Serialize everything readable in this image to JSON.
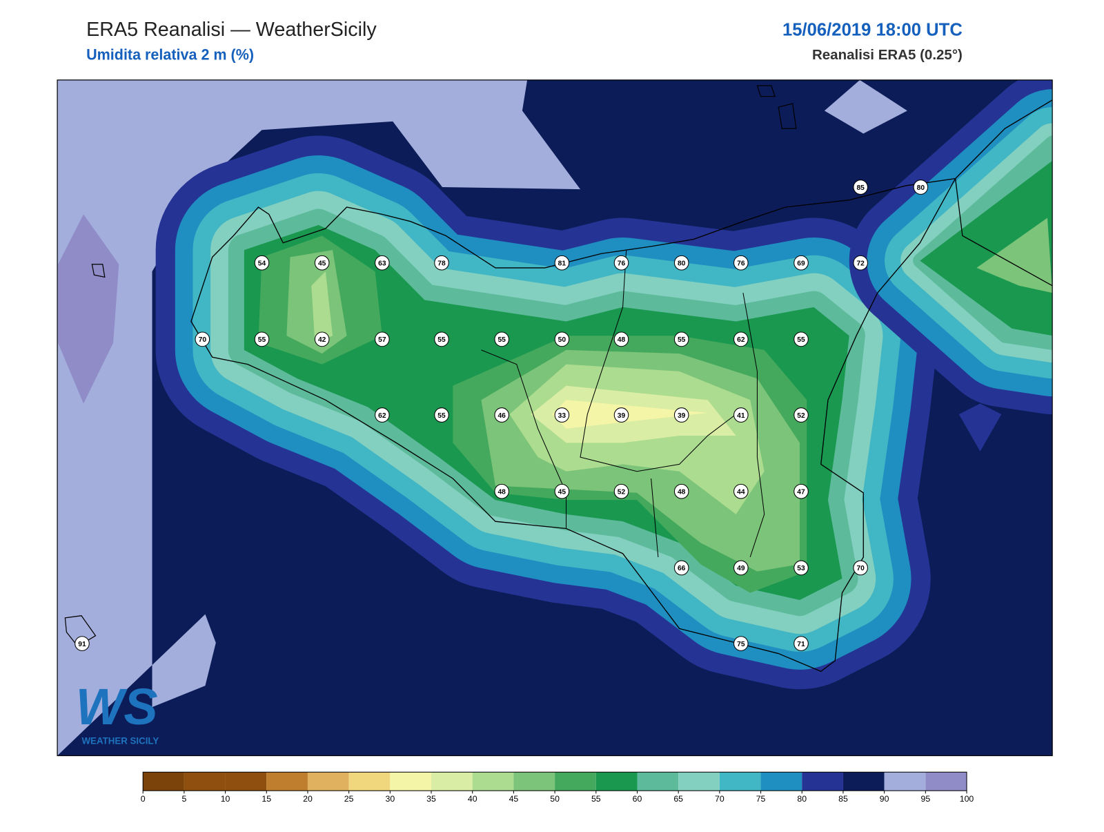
{
  "header": {
    "title": "ERA5 Reanalisi — WeatherSicily",
    "subtitle": "Umidita relativa 2 m (%)",
    "datetime": "15/06/2019 18:00 UTC",
    "source": "Reanalisi ERA5 (0.25°)"
  },
  "stations": [
    85,
    80,
    54,
    45,
    63,
    78,
    81,
    76,
    80,
    76,
    69,
    72,
    70,
    55,
    42,
    57,
    55,
    55,
    50,
    48,
    55,
    62,
    55,
    62,
    55,
    46,
    33,
    39,
    39,
    41,
    52,
    48,
    45,
    52,
    48,
    44,
    47,
    66,
    49,
    53,
    70,
    91,
    75,
    71
  ],
  "colorbar": {
    "ticks": [
      0,
      5,
      10,
      15,
      20,
      25,
      30,
      35,
      40,
      45,
      50,
      55,
      60,
      65,
      70,
      75,
      80,
      85,
      90,
      95,
      100
    ],
    "colors": [
      "#7b4209",
      "#8f4f0e",
      "#8f4f0e",
      "#bf7e2e",
      "#e0b15f",
      "#f0d67c",
      "#f5f5a8",
      "#d9eda4",
      "#acdc8f",
      "#7cc47a",
      "#44a95c",
      "#1a9850",
      "#5dbb9b",
      "#84d0c0",
      "#41b6c4",
      "#1f8fc1",
      "#253494",
      "#0c1c58",
      "#a4aedc",
      "#8f8cc8"
    ]
  },
  "logo": {
    "text": "WS",
    "caption": "WEATHER SICILY"
  }
}
